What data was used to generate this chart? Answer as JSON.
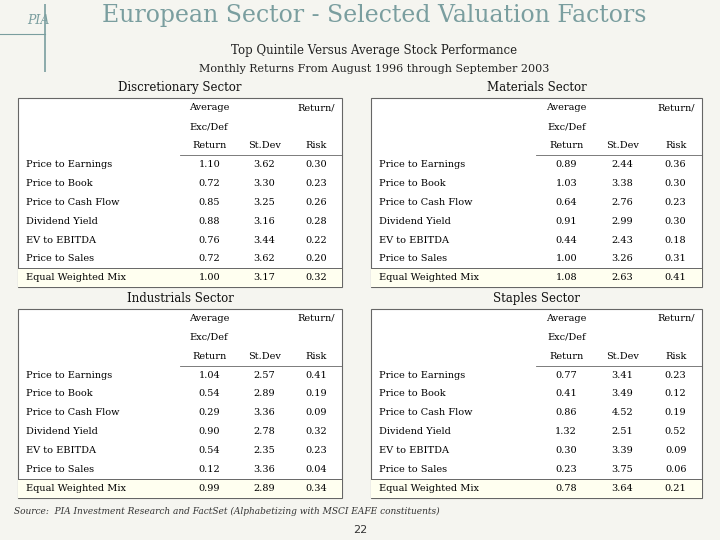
{
  "title": "European Sector - Selected Valuation Factors",
  "subtitle1": "Top Quintile Versus Average Stock Performance",
  "subtitle2": "Monthly Returns From August 1996 through September 2003",
  "logo_text": "PIA",
  "footer_source": "Source:  PIA Investment Research and FactSet (Alphabetizing with MSCI EAFE constituents)",
  "page_number": "22",
  "sectors": [
    {
      "title": "Discretionary Sector",
      "rows": [
        [
          "Price to Earnings",
          "1.10",
          "3.62",
          "0.30"
        ],
        [
          "Price to Book",
          "0.72",
          "3.30",
          "0.23"
        ],
        [
          "Price to Cash Flow",
          "0.85",
          "3.25",
          "0.26"
        ],
        [
          "Dividend Yield",
          "0.88",
          "3.16",
          "0.28"
        ],
        [
          "EV to EBITDA",
          "0.76",
          "3.44",
          "0.22"
        ],
        [
          "Price to Sales",
          "0.72",
          "3.62",
          "0.20"
        ]
      ],
      "footer": [
        "Equal Weighted Mix",
        "1.00",
        "3.17",
        "0.32"
      ]
    },
    {
      "title": "Materials Sector",
      "rows": [
        [
          "Price to Earnings",
          "0.89",
          "2.44",
          "0.36"
        ],
        [
          "Price to Book",
          "1.03",
          "3.38",
          "0.30"
        ],
        [
          "Price to Cash Flow",
          "0.64",
          "2.76",
          "0.23"
        ],
        [
          "Dividend Yield",
          "0.91",
          "2.99",
          "0.30"
        ],
        [
          "EV to EBITDA",
          "0.44",
          "2.43",
          "0.18"
        ],
        [
          "Price to Sales",
          "1.00",
          "3.26",
          "0.31"
        ]
      ],
      "footer": [
        "Equal Weighted Mix",
        "1.08",
        "2.63",
        "0.41"
      ]
    },
    {
      "title": "Industrials Sector",
      "rows": [
        [
          "Price to Earnings",
          "1.04",
          "2.57",
          "0.41"
        ],
        [
          "Price to Book",
          "0.54",
          "2.89",
          "0.19"
        ],
        [
          "Price to Cash Flow",
          "0.29",
          "3.36",
          "0.09"
        ],
        [
          "Dividend Yield",
          "0.90",
          "2.78",
          "0.32"
        ],
        [
          "EV to EBITDA",
          "0.54",
          "2.35",
          "0.23"
        ],
        [
          "Price to Sales",
          "0.12",
          "3.36",
          "0.04"
        ]
      ],
      "footer": [
        "Equal Weighted Mix",
        "0.99",
        "2.89",
        "0.34"
      ]
    },
    {
      "title": "Staples Sector",
      "rows": [
        [
          "Price to Earnings",
          "0.77",
          "3.41",
          "0.23"
        ],
        [
          "Price to Book",
          "0.41",
          "3.49",
          "0.12"
        ],
        [
          "Price to Cash Flow",
          "0.86",
          "4.52",
          "0.19"
        ],
        [
          "Dividend Yield",
          "1.32",
          "2.51",
          "0.52"
        ],
        [
          "EV to EBITDA",
          "0.30",
          "3.39",
          "0.09"
        ],
        [
          "Price to Sales",
          "0.23",
          "3.75",
          "0.06"
        ]
      ],
      "footer": [
        "Equal Weighted Mix",
        "0.78",
        "3.64",
        "0.21"
      ]
    }
  ],
  "bg_color": "#f5f5f0",
  "title_color": "#7a9e9f",
  "footer_bg": "#fffff0"
}
